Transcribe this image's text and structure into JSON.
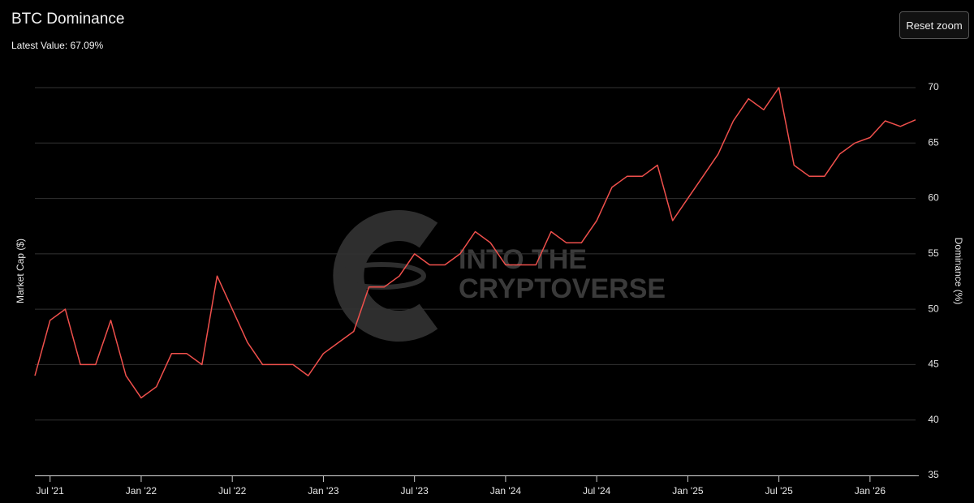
{
  "chart_data": {
    "type": "line",
    "title": "BTC Dominance",
    "subtitle": "Latest Value: 67.09%",
    "button": "Reset zoom",
    "y_label_left": "Market Cap ($)",
    "y_label_right": "Dominance (%)",
    "watermark": [
      "INTO THE",
      "CRYPTOVERSE"
    ],
    "color": "#f0504c",
    "x": [
      "2021-06",
      "2021-07",
      "2021-08",
      "2021-09",
      "2021-10",
      "2021-11",
      "2021-12",
      "2022-01",
      "2022-02",
      "2022-03",
      "2022-04",
      "2022-05",
      "2022-06",
      "2022-07",
      "2022-08",
      "2022-09",
      "2022-10",
      "2022-11",
      "2022-12",
      "2023-01",
      "2023-02",
      "2023-03",
      "2023-04",
      "2023-05",
      "2023-06",
      "2023-07",
      "2023-08",
      "2023-09",
      "2023-10",
      "2023-11",
      "2023-12",
      "2024-01",
      "2024-02",
      "2024-03",
      "2024-04",
      "2024-05",
      "2024-06",
      "2024-07",
      "2024-08",
      "2024-09",
      "2024-10",
      "2024-11",
      "2024-12",
      "2025-01",
      "2025-02",
      "2025-03",
      "2025-04",
      "2025-05",
      "2025-06",
      "2025-07",
      "2025-08",
      "2025-09",
      "2025-10",
      "2025-11",
      "2025-12",
      "2026-01",
      "2026-02",
      "2026-03",
      "2026-04"
    ],
    "values": [
      44,
      49,
      50,
      45,
      45,
      49,
      44,
      42,
      43,
      46,
      46,
      45,
      53,
      50,
      47,
      45,
      45,
      45,
      44,
      46,
      47,
      48,
      52,
      52,
      53,
      55,
      54,
      54,
      55,
      57,
      56,
      54,
      54,
      54,
      57,
      56,
      56,
      58,
      61,
      62,
      62,
      63,
      58,
      60,
      62,
      64,
      67,
      69,
      68,
      70,
      63,
      62,
      62,
      64,
      65,
      65.5,
      67,
      66.5,
      67.09
    ],
    "xlim": [
      "2021-06",
      "2026-04"
    ],
    "xticks": [
      {
        "value": "2021-07",
        "label": "Jul '21"
      },
      {
        "value": "2022-01",
        "label": "Jan '22"
      },
      {
        "value": "2022-07",
        "label": "Jul '22"
      },
      {
        "value": "2023-01",
        "label": "Jan '23"
      },
      {
        "value": "2023-07",
        "label": "Jul '23"
      },
      {
        "value": "2024-01",
        "label": "Jan '24"
      },
      {
        "value": "2024-07",
        "label": "Jul '24"
      },
      {
        "value": "2025-01",
        "label": "Jan '25"
      },
      {
        "value": "2025-07",
        "label": "Jul '25"
      },
      {
        "value": "2026-01",
        "label": "Jan '26"
      }
    ],
    "ylim": [
      35,
      70
    ],
    "yticks": [
      35,
      40,
      45,
      50,
      55,
      60,
      65,
      70
    ],
    "grid": true
  }
}
